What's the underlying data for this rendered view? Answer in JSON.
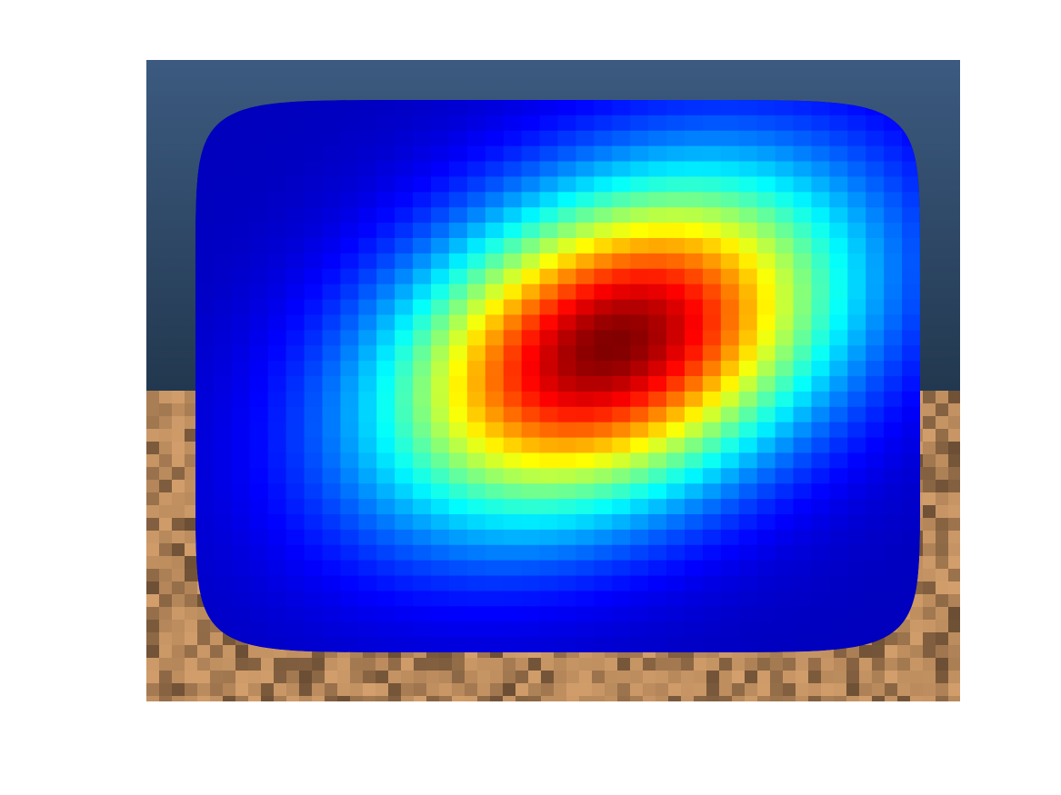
{
  "chart_data": {
    "type": "heatmap",
    "title": "",
    "xlabel": "",
    "ylabel": "",
    "axes_visible": false,
    "grid": false,
    "legend": "none",
    "colormap": "jet",
    "cells": [
      40,
      36
    ],
    "value_range": [
      0,
      1
    ],
    "peak": {
      "col": 23,
      "row": 16,
      "value": 1.0
    },
    "spread": {
      "cols": 9.5,
      "rows": 8.2
    },
    "rotation_deg": 35,
    "colors": {
      "background": "#ffffff",
      "sky_top": "#3c5a80",
      "sky_bottom": "#22384f",
      "ground_base": "#b98a5c",
      "ground_dark": "#4a3423",
      "ground_light": "#d9a470",
      "colormap_low": "#00008f",
      "colormap_high": "#800000"
    }
  }
}
